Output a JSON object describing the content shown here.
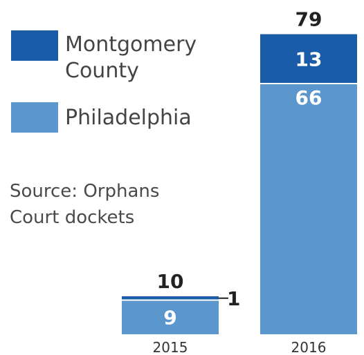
{
  "chart_data": {
    "type": "bar",
    "stacked": true,
    "categories": [
      "2015",
      "2016"
    ],
    "series": [
      {
        "name": "Philadelphia",
        "values": [
          9,
          66
        ],
        "color": "#5b96cc"
      },
      {
        "name": "Montgomery County",
        "values": [
          1,
          13
        ],
        "color": "#1a5ca8"
      }
    ],
    "totals": [
      10,
      79
    ],
    "ylim": [
      0,
      79
    ],
    "legend_position": "top-left",
    "grid": false
  },
  "legend": [
    {
      "label_line1": "Montgomery",
      "label_line2": "County",
      "color": "#1a5ca8"
    },
    {
      "label_line1": "Philadelphia",
      "label_line2": "",
      "color": "#5b96cc"
    }
  ],
  "source": {
    "line1": "Source: Orphans",
    "line2": "Court dockets"
  }
}
